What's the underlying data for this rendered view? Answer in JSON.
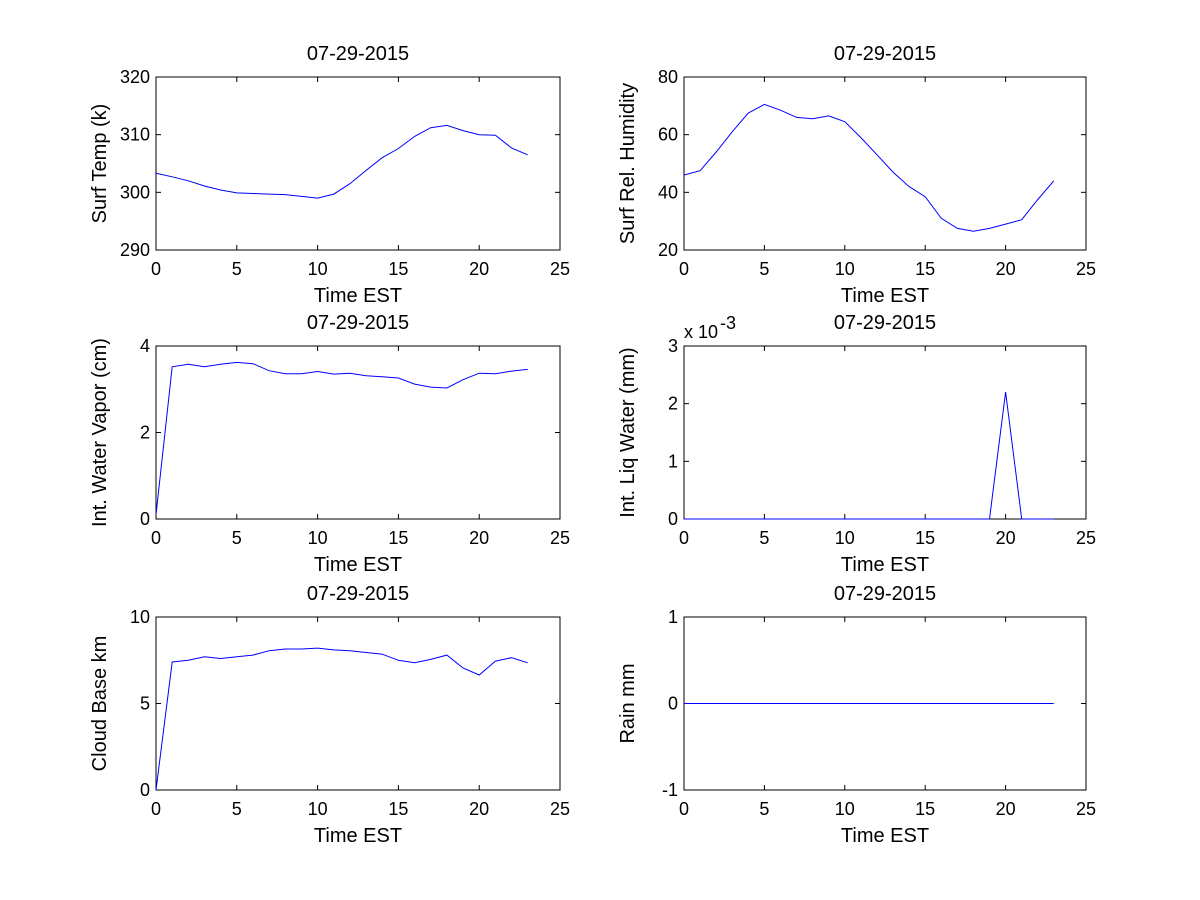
{
  "figure": {
    "background": "#ffffff",
    "line_color": "#0000ff"
  },
  "chart_data": [
    {
      "type": "line",
      "title": "07-29-2015",
      "xlabel": "Time EST",
      "ylabel": "Surf Temp (k)",
      "xlim": [
        0,
        25
      ],
      "ylim": [
        290,
        320
      ],
      "xticks": [
        0,
        5,
        10,
        15,
        20,
        25
      ],
      "yticks": [
        290,
        300,
        310,
        320
      ],
      "grid": false,
      "series": [
        {
          "name": "Surf Temp",
          "x": [
            0,
            1,
            2,
            3,
            4,
            5,
            6,
            7,
            8,
            9,
            10,
            11,
            12,
            13,
            14,
            15,
            16,
            17,
            18,
            19,
            20,
            21,
            22,
            23
          ],
          "y": [
            303.3,
            302.7,
            302.0,
            301.1,
            300.4,
            299.9,
            299.8,
            299.7,
            299.6,
            299.3,
            299.0,
            299.7,
            301.5,
            303.8,
            306.0,
            307.6,
            309.7,
            311.2,
            311.6,
            310.7,
            310.0,
            309.9,
            307.7,
            306.5
          ]
        }
      ]
    },
    {
      "type": "line",
      "title": "07-29-2015",
      "xlabel": "Time EST",
      "ylabel": "Surf Rel. Humidity",
      "xlim": [
        0,
        25
      ],
      "ylim": [
        20,
        80
      ],
      "xticks": [
        0,
        5,
        10,
        15,
        20,
        25
      ],
      "yticks": [
        20,
        40,
        60,
        80
      ],
      "grid": false,
      "series": [
        {
          "name": "Surf Rel. Humidity",
          "x": [
            0,
            1,
            2,
            3,
            4,
            5,
            6,
            7,
            8,
            9,
            10,
            11,
            12,
            13,
            14,
            15,
            16,
            17,
            18,
            19,
            20,
            21,
            22,
            23
          ],
          "y": [
            46,
            47.5,
            54,
            61,
            67.5,
            70.5,
            68.5,
            66,
            65.5,
            66.5,
            64.5,
            59,
            53,
            47,
            42,
            38.5,
            31,
            27.5,
            26.5,
            27.5,
            29,
            30.5,
            37.5,
            44
          ]
        }
      ]
    },
    {
      "type": "line",
      "title": "07-29-2015",
      "xlabel": "Time EST",
      "ylabel": "Int. Water Vapor (cm)",
      "xlim": [
        0,
        25
      ],
      "ylim": [
        0,
        4
      ],
      "xticks": [
        0,
        5,
        10,
        15,
        20,
        25
      ],
      "yticks": [
        0,
        2,
        4
      ],
      "grid": false,
      "series": [
        {
          "name": "Int. Water Vapor",
          "x": [
            0,
            1,
            2,
            3,
            4,
            5,
            6,
            7,
            8,
            9,
            10,
            11,
            12,
            13,
            14,
            15,
            16,
            17,
            18,
            19,
            20,
            21,
            22,
            23
          ],
          "y": [
            0.1,
            3.52,
            3.58,
            3.52,
            3.58,
            3.62,
            3.59,
            3.43,
            3.36,
            3.36,
            3.41,
            3.35,
            3.37,
            3.31,
            3.29,
            3.26,
            3.12,
            3.05,
            3.03,
            3.22,
            3.37,
            3.36,
            3.42,
            3.46
          ]
        }
      ]
    },
    {
      "type": "line",
      "title": "07-29-2015",
      "xlabel": "Time EST",
      "ylabel": "Int. Liq Water (mm)",
      "xlim": [
        0,
        25
      ],
      "ylim": [
        0,
        3
      ],
      "xticks": [
        0,
        5,
        10,
        15,
        20,
        25
      ],
      "yticks": [
        0,
        1,
        2,
        3
      ],
      "y_exponent_base": "x 10",
      "y_exponent_power": "-3",
      "grid": false,
      "series": [
        {
          "name": "Int. Liq Water",
          "x": [
            0,
            1,
            2,
            3,
            4,
            5,
            6,
            7,
            8,
            9,
            10,
            11,
            12,
            13,
            14,
            15,
            16,
            17,
            18,
            19,
            20,
            21,
            22,
            23
          ],
          "y": [
            0,
            0,
            0,
            0,
            0,
            0,
            0,
            0,
            0,
            0,
            0,
            0,
            0,
            0,
            0,
            0,
            0,
            0,
            0,
            0,
            2.2,
            0,
            0,
            0
          ]
        }
      ]
    },
    {
      "type": "line",
      "title": "07-29-2015",
      "xlabel": "Time EST",
      "ylabel": "Cloud Base km",
      "xlim": [
        0,
        25
      ],
      "ylim": [
        0,
        10
      ],
      "xticks": [
        0,
        5,
        10,
        15,
        20,
        25
      ],
      "yticks": [
        0,
        5,
        10
      ],
      "grid": false,
      "series": [
        {
          "name": "Cloud Base",
          "x": [
            0,
            1,
            2,
            3,
            4,
            5,
            6,
            7,
            8,
            9,
            10,
            11,
            12,
            13,
            14,
            15,
            16,
            17,
            18,
            19,
            20,
            21,
            22,
            23
          ],
          "y": [
            0,
            7.4,
            7.5,
            7.7,
            7.6,
            7.7,
            7.8,
            8.05,
            8.15,
            8.15,
            8.2,
            8.1,
            8.05,
            7.95,
            7.85,
            7.5,
            7.35,
            7.55,
            7.8,
            7.05,
            6.65,
            7.45,
            7.65,
            7.35
          ]
        }
      ]
    },
    {
      "type": "line",
      "title": "07-29-2015",
      "xlabel": "Time EST",
      "ylabel": "Rain mm",
      "xlim": [
        0,
        25
      ],
      "ylim": [
        -1,
        1
      ],
      "xticks": [
        0,
        5,
        10,
        15,
        20,
        25
      ],
      "yticks": [
        -1,
        0,
        1
      ],
      "grid": false,
      "series": [
        {
          "name": "Rain",
          "x": [
            0,
            1,
            2,
            3,
            4,
            5,
            6,
            7,
            8,
            9,
            10,
            11,
            12,
            13,
            14,
            15,
            16,
            17,
            18,
            19,
            20,
            21,
            22,
            23
          ],
          "y": [
            0,
            0,
            0,
            0,
            0,
            0,
            0,
            0,
            0,
            0,
            0,
            0,
            0,
            0,
            0,
            0,
            0,
            0,
            0,
            0,
            0,
            0,
            0,
            0
          ]
        }
      ]
    }
  ]
}
